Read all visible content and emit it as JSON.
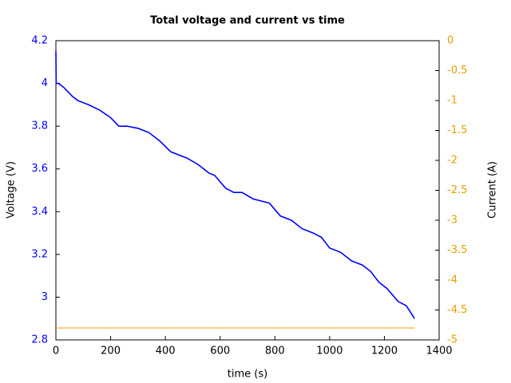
{
  "chart_data": {
    "type": "line",
    "title": "Total voltage and current vs time",
    "x_label": "time (s)",
    "y_label": "Voltage (V)",
    "y2_label": "Current (A)",
    "xlim": [
      0,
      1400
    ],
    "xticks": [
      0,
      200,
      400,
      600,
      800,
      1000,
      1200,
      1400
    ],
    "ylim": [
      2.8,
      4.2
    ],
    "yticks": [
      2.8,
      3,
      3.2,
      3.4,
      3.6,
      3.8,
      4,
      4.2
    ],
    "y2lim": [
      -5,
      0
    ],
    "y2ticks": [
      0,
      -0.5,
      -1,
      -1.5,
      -2,
      -2.5,
      -3,
      -3.5,
      -4,
      -4.5,
      -5
    ],
    "y_color": "#0000ff",
    "y2_color": "#e69f00",
    "series": [
      {
        "name": "Voltage",
        "color": "#0000ff",
        "x": [
          0,
          1,
          10,
          30,
          60,
          80,
          120,
          160,
          200,
          230,
          260,
          300,
          340,
          380,
          420,
          480,
          520,
          560,
          580,
          620,
          650,
          680,
          720,
          780,
          820,
          860,
          900,
          940,
          970,
          1000,
          1040,
          1080,
          1120,
          1150,
          1180,
          1210,
          1250,
          1280,
          1310
        ],
        "values": [
          4.15,
          4.0,
          4.0,
          3.98,
          3.94,
          3.92,
          3.9,
          3.875,
          3.84,
          3.8,
          3.8,
          3.79,
          3.77,
          3.73,
          3.68,
          3.65,
          3.62,
          3.58,
          3.57,
          3.51,
          3.49,
          3.49,
          3.46,
          3.44,
          3.38,
          3.36,
          3.32,
          3.3,
          3.28,
          3.23,
          3.21,
          3.17,
          3.15,
          3.12,
          3.07,
          3.04,
          2.98,
          2.96,
          2.9
        ]
      },
      {
        "name": "Current",
        "color": "#e6a000",
        "axis": "y2",
        "x": [
          0,
          1310
        ],
        "values": [
          -4.8,
          -4.8
        ]
      }
    ]
  }
}
